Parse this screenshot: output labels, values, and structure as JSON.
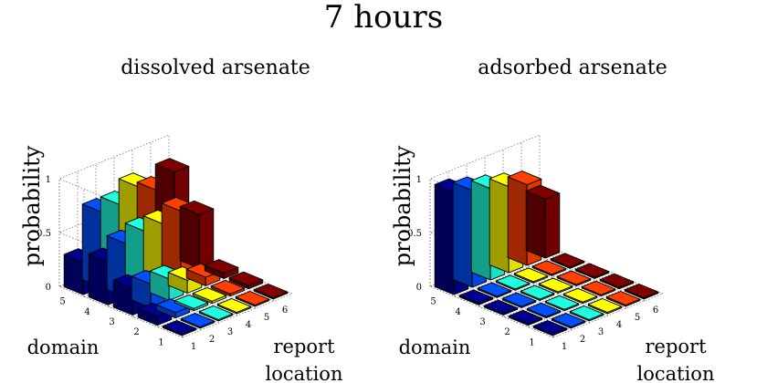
{
  "figure": {
    "title": "7 hours"
  },
  "chart_data": [
    {
      "type": "bar3d",
      "title": "dissolved arsenate",
      "xlabel": "report location",
      "ylabel": "domain",
      "zlabel": "probability",
      "x_ticks": [
        "1",
        "2",
        "3",
        "4",
        "5",
        "6"
      ],
      "y_ticks": [
        "1",
        "2",
        "3",
        "4",
        "5"
      ],
      "z_ticks": [
        "0",
        "0.5",
        "1"
      ],
      "zlim": [
        0,
        1
      ],
      "grid": true,
      "colors": [
        "#00008f",
        "#0050ff",
        "#1fffdf",
        "#ffff00",
        "#ff4000",
        "#800000"
      ],
      "values": [
        [
          0.0,
          0.0,
          0.0,
          0.0,
          0.0,
          0.0
        ],
        [
          0.08,
          0.05,
          0.02,
          0.02,
          0.02,
          0.03
        ],
        [
          0.25,
          0.22,
          0.2,
          0.12,
          0.08,
          0.05
        ],
        [
          0.4,
          0.5,
          0.55,
          0.55,
          0.6,
          0.5
        ],
        [
          0.3,
          0.7,
          0.7,
          0.8,
          0.7,
          0.8
        ]
      ]
    },
    {
      "type": "bar3d",
      "title": "adsorbed arsenate",
      "xlabel": "report location",
      "ylabel": "domain",
      "zlabel": "probability",
      "x_ticks": [
        "1",
        "2",
        "3",
        "4",
        "5",
        "6"
      ],
      "y_ticks": [
        "1",
        "2",
        "3",
        "4",
        "5"
      ],
      "z_ticks": [
        "0",
        "0.5",
        "1"
      ],
      "zlim": [
        0,
        1
      ],
      "grid": true,
      "colors": [
        "#00008f",
        "#0050ff",
        "#1fffdf",
        "#ffff00",
        "#ff4000",
        "#800000"
      ],
      "values": [
        [
          0.0,
          0.0,
          0.0,
          0.0,
          0.0,
          0.0
        ],
        [
          0.0,
          0.0,
          0.0,
          0.0,
          0.0,
          0.0
        ],
        [
          0.0,
          0.0,
          0.0,
          0.0,
          0.0,
          0.0
        ],
        [
          0.0,
          0.0,
          0.0,
          0.0,
          0.0,
          0.0
        ],
        [
          0.95,
          0.9,
          0.85,
          0.8,
          0.75,
          0.55
        ]
      ]
    }
  ]
}
